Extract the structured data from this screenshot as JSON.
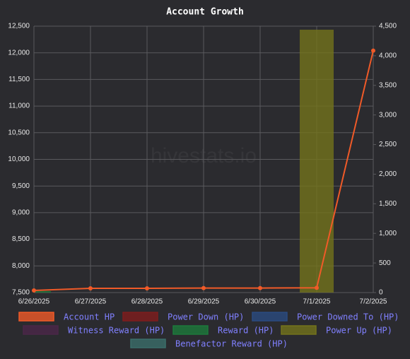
{
  "chart_data": {
    "type": "combo",
    "title": "Account Growth",
    "watermark": "hivestats.io",
    "categories": [
      "6/26/2025",
      "6/27/2025",
      "6/28/2025",
      "6/29/2025",
      "6/30/2025",
      "7/1/2025",
      "7/2/2025"
    ],
    "ylim": [
      7500,
      12500
    ],
    "yticks": [
      {
        "value": 7500,
        "label": "7,500"
      },
      {
        "value": 8000,
        "label": "8,000"
      },
      {
        "value": 8500,
        "label": "8,500"
      },
      {
        "value": 9000,
        "label": "9,000"
      },
      {
        "value": 9500,
        "label": "9,500"
      },
      {
        "value": 10000,
        "label": "10,000"
      },
      {
        "value": 10500,
        "label": "10,500"
      },
      {
        "value": 11000,
        "label": "11,000"
      },
      {
        "value": 11500,
        "label": "11,500"
      },
      {
        "value": 12000,
        "label": "12,000"
      },
      {
        "value": 12500,
        "label": "12,500"
      }
    ],
    "y2lim": [
      0,
      4500
    ],
    "y2ticks": [
      0,
      500,
      {
        "value": 1000,
        "label": "1,000"
      },
      {
        "value": 1500,
        "label": "1,500"
      },
      {
        "value": 2000,
        "label": "2,000"
      },
      {
        "value": 2500,
        "label": "2,500"
      },
      {
        "value": 3000,
        "label": "3,000"
      },
      {
        "value": 3500,
        "label": "3,500"
      },
      {
        "value": 4000,
        "label": "4,000"
      },
      {
        "value": 4500,
        "label": "4,500"
      }
    ],
    "grid": true,
    "series": [
      {
        "name": "Account HP",
        "type": "line",
        "color": "#f05a28",
        "values": [
          7540,
          7580,
          7580,
          7585,
          7585,
          7590,
          12040
        ]
      },
      {
        "name": "Power Down (HP)",
        "type": "bar",
        "axis": "y2",
        "color": "#7f1d1d",
        "values": [
          0,
          0,
          0,
          0,
          0,
          0,
          0
        ]
      },
      {
        "name": "Power Downed To (HP)",
        "type": "bar",
        "axis": "y2",
        "color": "#2b4b80",
        "values": [
          0,
          0,
          0,
          0,
          0,
          0,
          0
        ]
      },
      {
        "name": "Witness Reward (HP)",
        "type": "bar",
        "axis": "y2",
        "color": "#4b2748",
        "values": [
          0,
          0,
          0,
          0,
          0,
          0,
          0
        ]
      },
      {
        "name": "Reward (HP)",
        "type": "bar",
        "axis": "y2",
        "color": "#1d7a3b",
        "values": [
          25,
          0,
          0,
          0,
          0,
          0,
          0
        ]
      },
      {
        "name": "Power Up (HP)",
        "type": "bar",
        "axis": "y2",
        "color": "#73731c",
        "values": [
          0,
          0,
          0,
          0,
          0,
          4440,
          0
        ]
      },
      {
        "name": "Benefactor Reward (HP)",
        "type": "bar",
        "axis": "y2",
        "color": "#3b6e6a",
        "values": [
          0,
          0,
          0,
          0,
          0,
          0,
          0
        ]
      }
    ]
  }
}
